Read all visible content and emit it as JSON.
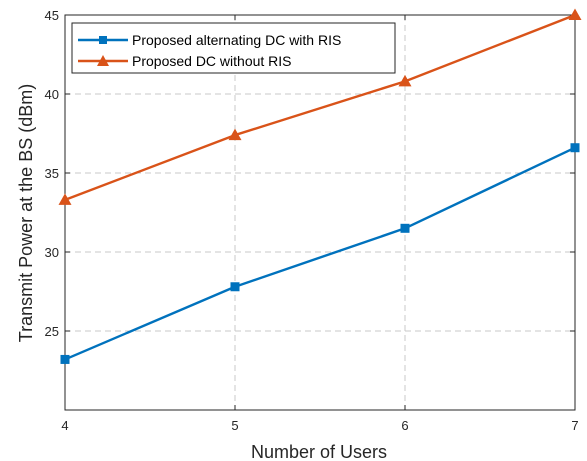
{
  "chart_data": {
    "type": "line",
    "x": [
      4,
      5,
      6,
      7
    ],
    "xlabel": "Number of Users",
    "ylabel": "Transmit Power at the BS (dBm)",
    "xlim": [
      4,
      7
    ],
    "ylim": [
      20,
      45
    ],
    "xticks": [
      "4",
      "5",
      "6",
      "7"
    ],
    "yticks": [
      "25",
      "30",
      "35",
      "40",
      "45"
    ],
    "grid": true,
    "legend_position": "top-left",
    "series": [
      {
        "name": "Proposed alternating DC with RIS",
        "values": [
          23.2,
          27.8,
          31.5,
          36.6
        ],
        "color": "#0072BD",
        "marker": "square"
      },
      {
        "name": "Proposed  DC without RIS",
        "values": [
          33.3,
          37.4,
          40.8,
          45.0
        ],
        "color": "#D95319",
        "marker": "triangle"
      }
    ]
  }
}
